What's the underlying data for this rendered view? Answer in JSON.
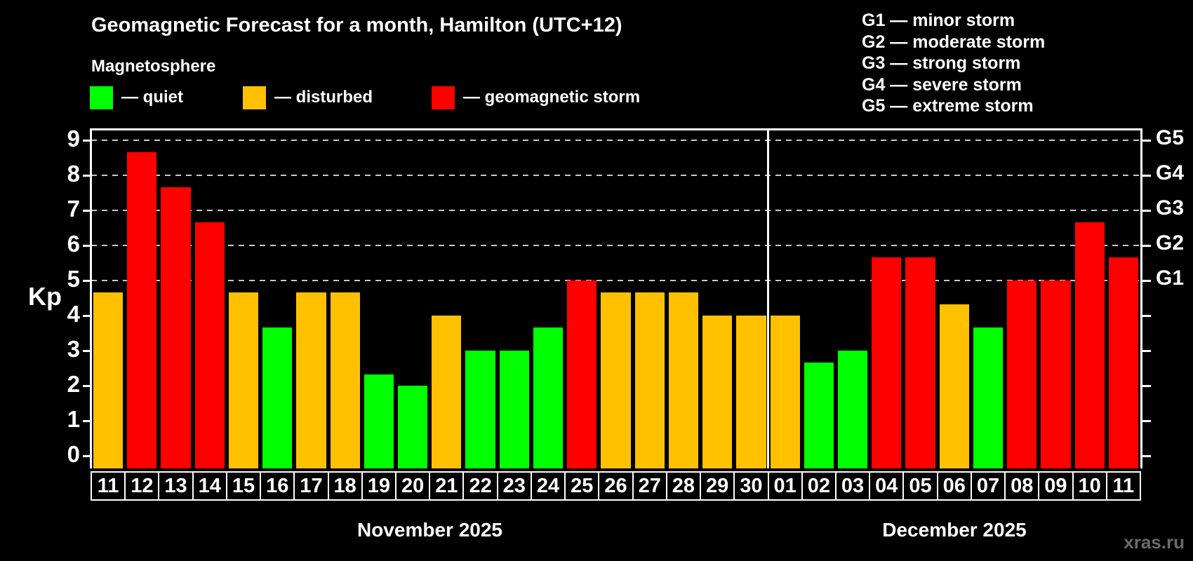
{
  "header": {
    "title": "Geomagnetic Forecast for a month, Hamilton (UTC+12)",
    "subtitle": "Magnetosphere"
  },
  "legend": {
    "quiet": "— quiet",
    "disturbed": "— disturbed",
    "storm": "— geomagnetic storm"
  },
  "g_legend": [
    "G1 — minor storm",
    "G2 — moderate storm",
    "G3 — strong storm",
    "G4 — severe storm",
    "G5 — extreme storm"
  ],
  "watermark": "xras.ru",
  "colors": {
    "quiet": "#00ff00",
    "disturbed": "#ffc000",
    "storm": "#ff0000",
    "grid": "#c8c8c8",
    "axis": "#ffffff",
    "watermark": "#6a6a6a"
  },
  "chart_data": {
    "type": "bar",
    "title": "Geomagnetic Forecast for a month, Hamilton (UTC+12)",
    "ylabel": "Kp",
    "ylim": [
      0,
      9
    ],
    "yticks": [
      0,
      1,
      2,
      3,
      4,
      5,
      6,
      7,
      8,
      9
    ],
    "grid_levels": [
      5,
      6,
      7,
      8,
      9
    ],
    "grid_style": "dashed",
    "legend_position": "top-left",
    "right_axis": [
      {
        "label": "G1",
        "kp": 5
      },
      {
        "label": "G2",
        "kp": 6
      },
      {
        "label": "G3",
        "kp": 7
      },
      {
        "label": "G4",
        "kp": 8
      },
      {
        "label": "G5",
        "kp": 9
      }
    ],
    "months": [
      {
        "label": "November 2025",
        "categories": [
          "11",
          "12",
          "13",
          "14",
          "15",
          "16",
          "17",
          "18",
          "19",
          "20",
          "21",
          "22",
          "23",
          "24",
          "25",
          "26",
          "27",
          "28",
          "29",
          "30"
        ],
        "values": [
          4.67,
          8.67,
          7.67,
          6.67,
          4.67,
          3.67,
          4.67,
          4.67,
          2.33,
          2.0,
          4.0,
          3.0,
          3.0,
          3.67,
          5.0,
          4.67,
          4.67,
          4.67,
          4.0,
          4.0
        ],
        "statuses": [
          "disturbed",
          "storm",
          "storm",
          "storm",
          "disturbed",
          "quiet",
          "disturbed",
          "disturbed",
          "quiet",
          "quiet",
          "disturbed",
          "quiet",
          "quiet",
          "quiet",
          "storm",
          "disturbed",
          "disturbed",
          "disturbed",
          "disturbed",
          "disturbed"
        ]
      },
      {
        "label": "December 2025",
        "categories": [
          "01",
          "02",
          "03",
          "04",
          "05",
          "06",
          "07",
          "08",
          "09",
          "10",
          "11"
        ],
        "values": [
          4.0,
          2.67,
          3.0,
          5.67,
          5.67,
          4.33,
          3.67,
          5.0,
          5.0,
          6.67,
          5.67
        ],
        "statuses": [
          "disturbed",
          "quiet",
          "quiet",
          "storm",
          "storm",
          "disturbed",
          "quiet",
          "storm",
          "storm",
          "storm",
          "storm"
        ]
      }
    ]
  }
}
